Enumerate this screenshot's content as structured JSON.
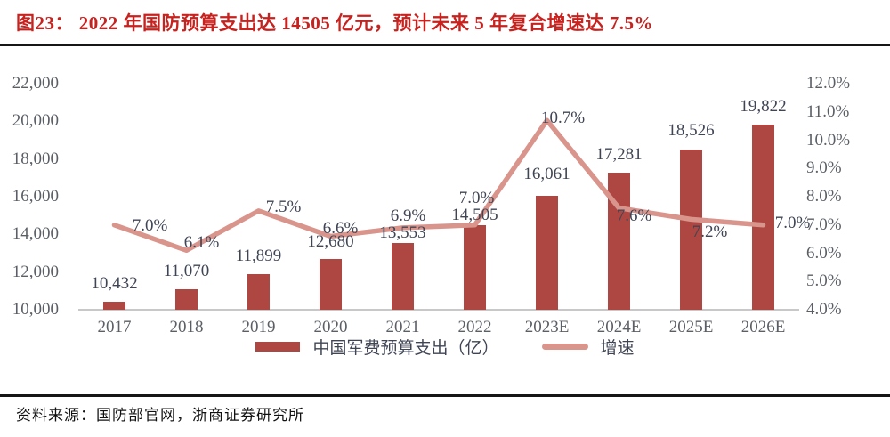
{
  "header": {
    "title": "图23：  2022 年国防预算支出达 14505 亿元，预计未来 5 年复合增速达 7.5%"
  },
  "footer": {
    "source": "资料来源：国防部官网，浙商证券研究所"
  },
  "colors": {
    "title_red": "#C8221F",
    "rule_dark": "#161616",
    "bar_fill": "#AE4641",
    "line_pink": "#D9948C",
    "axis_text": "#5A5F66",
    "data_label_text": "#3F4554",
    "baseline_gray": "#C8C8C8"
  },
  "chart_data": {
    "type": "bar",
    "title": "2022年国防预算支出达14505亿元，预计未来5年复合增速达7.5%",
    "categories": [
      "2017",
      "2018",
      "2019",
      "2020",
      "2021",
      "2022",
      "2023E",
      "2024E",
      "2025E",
      "2026E"
    ],
    "series": [
      {
        "name": "中国军费预算支出（亿）",
        "type": "bar",
        "axis": "left",
        "values": [
          10432,
          11070,
          11899,
          12680,
          13553,
          14505,
          16061,
          17281,
          18526,
          19822
        ],
        "data_labels": [
          "10,432",
          "11,070",
          "11,899",
          "12,680",
          "13,553",
          "14,505",
          "16,061",
          "17,281",
          "18,526",
          "19,822"
        ]
      },
      {
        "name": "增速",
        "type": "line",
        "axis": "right",
        "values": [
          7.0,
          6.1,
          7.5,
          6.6,
          6.9,
          7.0,
          10.7,
          7.6,
          7.2,
          7.0
        ],
        "data_labels": [
          "7.0%",
          "6.1%",
          "7.5%",
          "6.6%",
          "6.9%",
          "7.0%",
          "10.7%",
          "7.6%",
          "7.2%",
          "7.0%"
        ]
      }
    ],
    "left_axis": {
      "min": 10000,
      "max": 22000,
      "step": 2000,
      "tick_labels": [
        "22,000",
        "20,000",
        "18,000",
        "16,000",
        "14,000",
        "12,000",
        "10,000"
      ]
    },
    "right_axis": {
      "min": 4.0,
      "max": 12.0,
      "step": 1.0,
      "tick_labels": [
        "12.0%",
        "11.0%",
        "10.0%",
        "9.0%",
        "8.0%",
        "7.0%",
        "6.0%",
        "5.0%",
        "4.0%"
      ]
    },
    "grid": false,
    "legend_position": "bottom"
  }
}
